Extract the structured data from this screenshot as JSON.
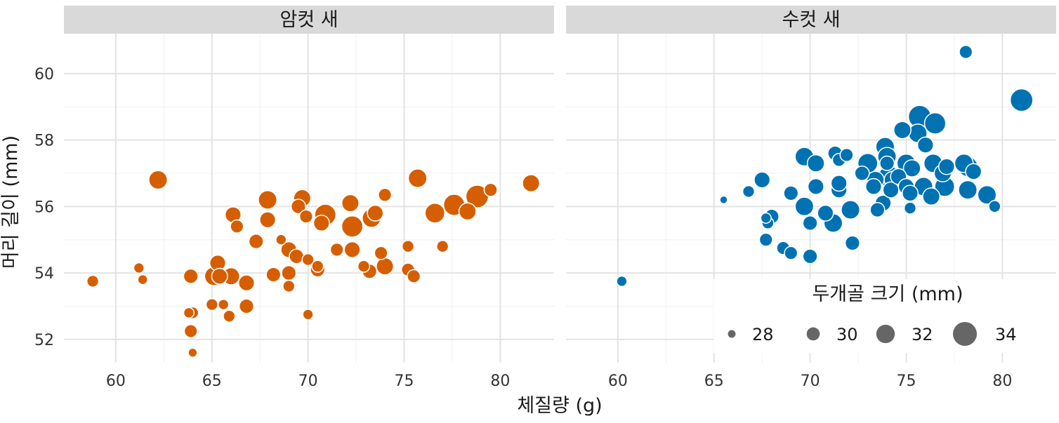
{
  "chart_data": {
    "type": "scatter",
    "xlabel": "체질량 (g)",
    "ylabel": "머리 길이 (mm)",
    "xlim": [
      57.3,
      82.8
    ],
    "ylim": [
      51.3,
      61.2
    ],
    "xticks": [
      60,
      65,
      70,
      75,
      80
    ],
    "yticks": [
      52,
      54,
      56,
      58,
      60
    ],
    "grid": true,
    "size_legend": {
      "title": "두개골 크기 (mm)",
      "values": [
        28,
        30,
        32,
        34
      ],
      "range": [
        27.5,
        34.5
      ],
      "placement": "bottom-right"
    },
    "panels": [
      {
        "name": "암컷 새",
        "color": "#D55E00",
        "points": [
          [
            58.8,
            53.75,
            29.5
          ],
          [
            61.2,
            54.15,
            29
          ],
          [
            61.4,
            53.8,
            28.8
          ],
          [
            62.2,
            56.8,
            32
          ],
          [
            63.8,
            52.8,
            29
          ],
          [
            64.0,
            52.8,
            29.5
          ],
          [
            63.9,
            53.9,
            30.5
          ],
          [
            63.9,
            52.25,
            30
          ],
          [
            64.0,
            51.6,
            28.5
          ],
          [
            65.0,
            53.05,
            29.5
          ],
          [
            65.3,
            54.3,
            31
          ],
          [
            65.4,
            53.9,
            31
          ],
          [
            65.1,
            53.9,
            32
          ],
          [
            65.6,
            53.05,
            29
          ],
          [
            65.9,
            52.7,
            29.5
          ],
          [
            66.0,
            53.9,
            31.5
          ],
          [
            66.1,
            55.75,
            31
          ],
          [
            66.3,
            55.4,
            30
          ],
          [
            66.8,
            53.7,
            31
          ],
          [
            66.8,
            53.0,
            30.5
          ],
          [
            67.3,
            54.95,
            30.5
          ],
          [
            67.9,
            56.2,
            32
          ],
          [
            67.9,
            55.6,
            31
          ],
          [
            68.2,
            53.95,
            30.5
          ],
          [
            68.6,
            55.0,
            29
          ],
          [
            69.0,
            54.7,
            31
          ],
          [
            69.0,
            54.0,
            30.5
          ],
          [
            69.0,
            53.6,
            29.5
          ],
          [
            69.4,
            54.5,
            30.5
          ],
          [
            69.5,
            56.0,
            30.5
          ],
          [
            69.7,
            56.25,
            31.5
          ],
          [
            69.9,
            55.7,
            30
          ],
          [
            70.0,
            54.4,
            29.5
          ],
          [
            70.0,
            52.75,
            29
          ],
          [
            70.5,
            54.1,
            30.5
          ],
          [
            70.5,
            54.2,
            29.5
          ],
          [
            70.7,
            55.5,
            31
          ],
          [
            70.9,
            55.75,
            33
          ],
          [
            71.5,
            54.7,
            30
          ],
          [
            72.2,
            56.1,
            31.5
          ],
          [
            72.3,
            55.4,
            33
          ],
          [
            72.3,
            54.7,
            31
          ],
          [
            72.9,
            54.2,
            29.5
          ],
          [
            73.2,
            54.05,
            30.5
          ],
          [
            73.3,
            55.65,
            32
          ],
          [
            73.5,
            55.8,
            31
          ],
          [
            73.8,
            54.6,
            30
          ],
          [
            74.0,
            54.2,
            31.5
          ],
          [
            74.0,
            56.35,
            30
          ],
          [
            75.2,
            54.8,
            29.5
          ],
          [
            75.2,
            54.1,
            30
          ],
          [
            75.5,
            53.9,
            30
          ],
          [
            75.7,
            56.85,
            32
          ],
          [
            77.0,
            54.8,
            29.5
          ],
          [
            76.6,
            55.8,
            32.5
          ],
          [
            77.6,
            56.05,
            33
          ],
          [
            78.3,
            55.85,
            31.5
          ],
          [
            78.8,
            56.3,
            33.5
          ],
          [
            79.5,
            56.5,
            30
          ],
          [
            81.6,
            56.7,
            31.5
          ]
        ]
      },
      {
        "name": "수컷 새",
        "color": "#0072B2",
        "points": [
          [
            60.2,
            53.75,
            29
          ],
          [
            65.5,
            56.2,
            28
          ],
          [
            66.8,
            56.45,
            29.5
          ],
          [
            67.5,
            56.8,
            31
          ],
          [
            67.7,
            55.65,
            29
          ],
          [
            67.8,
            55.5,
            29.5
          ],
          [
            68.0,
            55.7,
            30.5
          ],
          [
            67.7,
            55.0,
            30
          ],
          [
            68.6,
            54.75,
            30
          ],
          [
            69.0,
            54.6,
            30
          ],
          [
            69.0,
            56.4,
            30.5
          ],
          [
            69.7,
            57.5,
            32
          ],
          [
            69.7,
            56.0,
            32
          ],
          [
            70.0,
            55.5,
            30.5
          ],
          [
            70.0,
            54.5,
            30.5
          ],
          [
            70.3,
            57.3,
            31.5
          ],
          [
            70.3,
            56.6,
            31
          ],
          [
            70.8,
            55.8,
            31
          ],
          [
            71.2,
            55.5,
            32
          ],
          [
            71.3,
            57.6,
            30.5
          ],
          [
            71.5,
            57.4,
            30
          ],
          [
            71.5,
            56.5,
            31
          ],
          [
            71.5,
            56.7,
            31
          ],
          [
            71.9,
            57.55,
            30
          ],
          [
            72.1,
            55.9,
            32
          ],
          [
            72.2,
            54.9,
            30.5
          ],
          [
            72.7,
            57.0,
            30.5
          ],
          [
            73.0,
            57.3,
            32.5
          ],
          [
            73.3,
            56.6,
            31
          ],
          [
            73.4,
            56.8,
            31.5
          ],
          [
            73.5,
            55.9,
            30.5
          ],
          [
            73.8,
            56.1,
            31
          ],
          [
            73.9,
            57.8,
            32
          ],
          [
            74.0,
            57.5,
            32
          ],
          [
            74.0,
            57.3,
            30.5
          ],
          [
            74.1,
            56.9,
            33
          ],
          [
            74.2,
            56.5,
            31
          ],
          [
            74.3,
            56.8,
            31.5
          ],
          [
            74.6,
            56.9,
            31
          ],
          [
            74.8,
            58.3,
            31.5
          ],
          [
            75.0,
            57.3,
            32
          ],
          [
            75.0,
            56.6,
            31
          ],
          [
            75.2,
            56.4,
            31
          ],
          [
            75.2,
            55.95,
            29.5
          ],
          [
            75.3,
            57.15,
            31.5
          ],
          [
            75.6,
            58.2,
            32
          ],
          [
            75.7,
            58.7,
            33.5
          ],
          [
            75.9,
            56.6,
            32
          ],
          [
            76.0,
            57.85,
            31
          ],
          [
            76.3,
            56.3,
            31.5
          ],
          [
            76.4,
            57.3,
            32
          ],
          [
            76.5,
            58.5,
            33
          ],
          [
            76.9,
            57.0,
            31.5
          ],
          [
            77.0,
            56.6,
            32.5
          ],
          [
            77.1,
            57.2,
            31
          ],
          [
            78.0,
            57.3,
            32
          ],
          [
            78.2,
            57.2,
            32.5
          ],
          [
            78.2,
            56.5,
            32
          ],
          [
            78.5,
            57.05,
            31
          ],
          [
            78.1,
            60.65,
            30
          ],
          [
            79.2,
            56.35,
            32
          ],
          [
            79.6,
            56.0,
            29.5
          ],
          [
            81.0,
            59.2,
            33.5
          ]
        ]
      }
    ]
  }
}
